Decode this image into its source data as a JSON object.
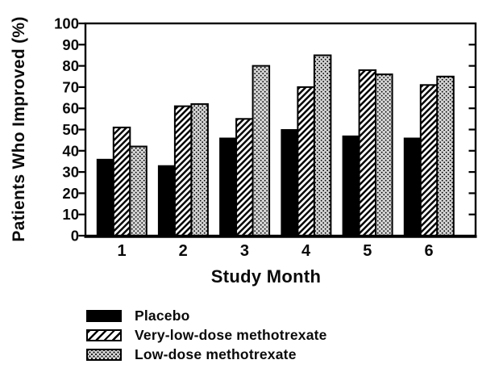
{
  "figure": {
    "background": "#ffffff",
    "ink": "#0a0a0a",
    "stipple_gray": "#d4d4d4"
  },
  "chart_data": {
    "type": "bar",
    "title": "",
    "xlabel": "Study Month",
    "ylabel": "Patients Who Improved (%)",
    "categories": [
      "1",
      "2",
      "3",
      "4",
      "5",
      "6"
    ],
    "series": [
      {
        "name": "Placebo",
        "pattern": "solid-black",
        "values": [
          36,
          33,
          46,
          50,
          47,
          46
        ]
      },
      {
        "name": "Very-low-dose methotrexate",
        "pattern": "diagonal-hatch",
        "values": [
          51,
          61,
          55,
          70,
          78,
          71
        ]
      },
      {
        "name": "Low-dose methotrexate",
        "pattern": "stipple",
        "values": [
          42,
          62,
          80,
          85,
          76,
          75
        ]
      }
    ],
    "ylim": [
      0,
      100
    ],
    "yticks": [
      0,
      10,
      20,
      30,
      40,
      50,
      60,
      70,
      80,
      90,
      100
    ],
    "grid": false,
    "legend_position": "bottom-left"
  }
}
